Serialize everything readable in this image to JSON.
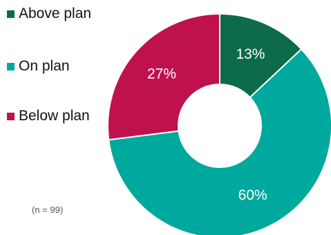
{
  "chart_data": {
    "type": "pie",
    "variant": "donut",
    "categories": [
      "Above plan",
      "On plan",
      "Below plan"
    ],
    "values": [
      13,
      60,
      27
    ],
    "value_labels": [
      "13%",
      "60%",
      "27%"
    ],
    "colors": [
      "#0d6b4a",
      "#00a99d",
      "#c0114f"
    ],
    "legend_position": "left",
    "note": "(n = 99)"
  }
}
